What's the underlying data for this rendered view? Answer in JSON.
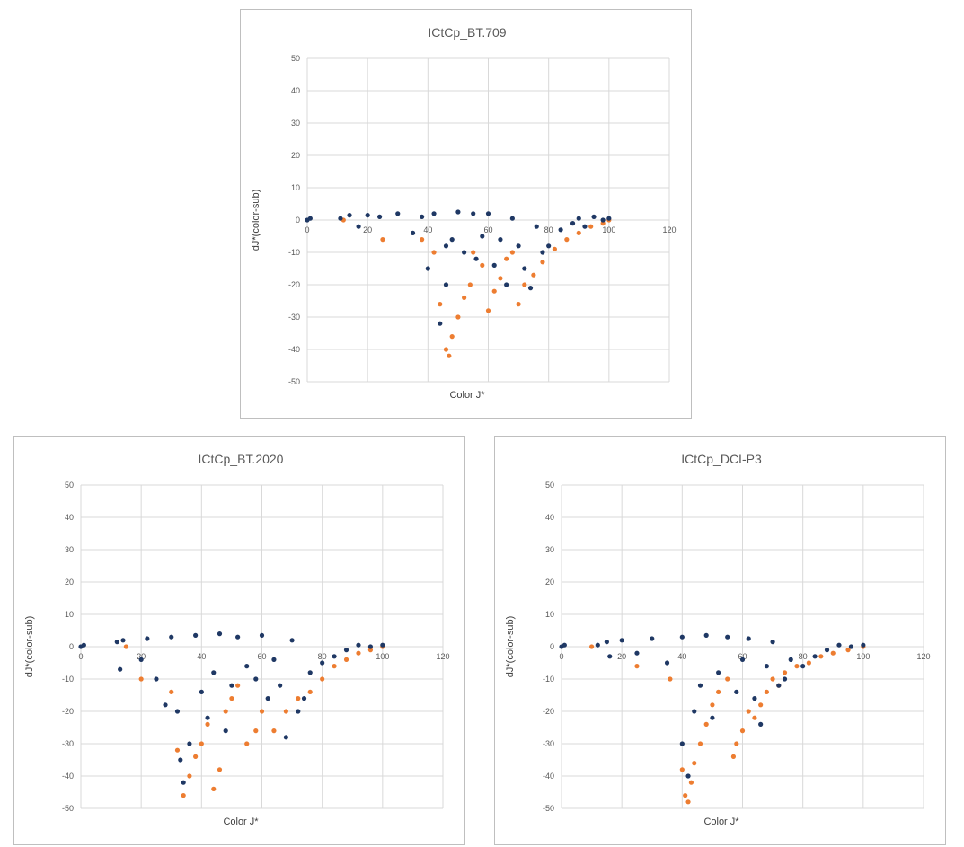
{
  "colors": {
    "series_a": "#1f3864",
    "series_b": "#ed7d31",
    "grid": "#d9d9d9"
  },
  "chart_data": [
    {
      "type": "scatter",
      "title": "ICtCp_BT.709",
      "xlabel": "Color J*",
      "ylabel": "dJ*(color-sub)",
      "xlim": [
        0,
        120
      ],
      "ylim": [
        -50,
        50
      ],
      "xticks": [
        "0",
        "20",
        "40",
        "60",
        "80",
        "100",
        "120"
      ],
      "yticks": [
        "50",
        "40",
        "30",
        "20",
        "10",
        "0",
        "-10",
        "-20",
        "-30",
        "-40",
        "-50"
      ],
      "series": [
        {
          "name": "dark",
          "points": [
            [
              0,
              0
            ],
            [
              1,
              0.5
            ],
            [
              11,
              0.5
            ],
            [
              14,
              1.5
            ],
            [
              17,
              -2
            ],
            [
              20,
              1.5
            ],
            [
              24,
              1
            ],
            [
              30,
              2
            ],
            [
              35,
              -4
            ],
            [
              38,
              1
            ],
            [
              40,
              -15
            ],
            [
              42,
              2
            ],
            [
              44,
              -32
            ],
            [
              46,
              -20
            ],
            [
              46,
              -8
            ],
            [
              48,
              -6
            ],
            [
              50,
              2.5
            ],
            [
              52,
              -10
            ],
            [
              55,
              2
            ],
            [
              56,
              -12
            ],
            [
              58,
              -5
            ],
            [
              60,
              2
            ],
            [
              62,
              -14
            ],
            [
              64,
              -6
            ],
            [
              66,
              -20
            ],
            [
              68,
              0.5
            ],
            [
              70,
              -8
            ],
            [
              72,
              -15
            ],
            [
              74,
              -21
            ],
            [
              76,
              -2
            ],
            [
              78,
              -10
            ],
            [
              80,
              -8
            ],
            [
              84,
              -3
            ],
            [
              88,
              -1
            ],
            [
              90,
              0.5
            ],
            [
              92,
              -2
            ],
            [
              95,
              1
            ],
            [
              98,
              0
            ],
            [
              100,
              0.5
            ]
          ]
        },
        {
          "name": "orange",
          "points": [
            [
              12,
              0
            ],
            [
              25,
              -6
            ],
            [
              38,
              -6
            ],
            [
              42,
              -10
            ],
            [
              44,
              -26
            ],
            [
              46,
              -40
            ],
            [
              47,
              -42
            ],
            [
              48,
              -36
            ],
            [
              50,
              -30
            ],
            [
              52,
              -24
            ],
            [
              54,
              -20
            ],
            [
              55,
              -10
            ],
            [
              58,
              -14
            ],
            [
              60,
              -28
            ],
            [
              62,
              -22
            ],
            [
              64,
              -18
            ],
            [
              66,
              -12
            ],
            [
              68,
              -10
            ],
            [
              70,
              -26
            ],
            [
              72,
              -20
            ],
            [
              75,
              -17
            ],
            [
              78,
              -13
            ],
            [
              82,
              -9
            ],
            [
              86,
              -6
            ],
            [
              90,
              -4
            ],
            [
              94,
              -2
            ],
            [
              98,
              -1
            ],
            [
              100,
              0
            ]
          ]
        }
      ]
    },
    {
      "type": "scatter",
      "title": "ICtCp_BT.2020",
      "xlabel": "Color J*",
      "ylabel": "dJ*(color-sub)",
      "xlim": [
        0,
        120
      ],
      "ylim": [
        -50,
        50
      ],
      "xticks": [
        "0",
        "20",
        "40",
        "60",
        "80",
        "100",
        "120"
      ],
      "yticks": [
        "50",
        "40",
        "30",
        "20",
        "10",
        "0",
        "-10",
        "-20",
        "-30",
        "-40",
        "-50"
      ],
      "series": [
        {
          "name": "dark",
          "points": [
            [
              0,
              0
            ],
            [
              1,
              0.5
            ],
            [
              12,
              1.5
            ],
            [
              14,
              2
            ],
            [
              13,
              -7
            ],
            [
              20,
              -4
            ],
            [
              22,
              2.5
            ],
            [
              25,
              -10
            ],
            [
              28,
              -18
            ],
            [
              30,
              3
            ],
            [
              32,
              -20
            ],
            [
              33,
              -35
            ],
            [
              34,
              -42
            ],
            [
              36,
              -30
            ],
            [
              38,
              3.5
            ],
            [
              40,
              -14
            ],
            [
              42,
              -22
            ],
            [
              44,
              -8
            ],
            [
              46,
              4
            ],
            [
              48,
              -26
            ],
            [
              50,
              -12
            ],
            [
              52,
              3
            ],
            [
              55,
              -6
            ],
            [
              58,
              -10
            ],
            [
              60,
              3.5
            ],
            [
              62,
              -16
            ],
            [
              64,
              -4
            ],
            [
              66,
              -12
            ],
            [
              68,
              -28
            ],
            [
              70,
              2
            ],
            [
              72,
              -20
            ],
            [
              74,
              -16
            ],
            [
              76,
              -8
            ],
            [
              80,
              -5
            ],
            [
              84,
              -3
            ],
            [
              88,
              -1
            ],
            [
              92,
              0.5
            ],
            [
              96,
              0
            ],
            [
              100,
              0.5
            ]
          ]
        },
        {
          "name": "orange",
          "points": [
            [
              15,
              0
            ],
            [
              20,
              -10
            ],
            [
              30,
              -14
            ],
            [
              32,
              -32
            ],
            [
              34,
              -46
            ],
            [
              36,
              -40
            ],
            [
              38,
              -34
            ],
            [
              40,
              -30
            ],
            [
              42,
              -24
            ],
            [
              44,
              -44
            ],
            [
              46,
              -38
            ],
            [
              48,
              -20
            ],
            [
              50,
              -16
            ],
            [
              52,
              -12
            ],
            [
              55,
              -30
            ],
            [
              58,
              -26
            ],
            [
              60,
              -20
            ],
            [
              64,
              -26
            ],
            [
              68,
              -20
            ],
            [
              72,
              -16
            ],
            [
              76,
              -14
            ],
            [
              80,
              -10
            ],
            [
              84,
              -6
            ],
            [
              88,
              -4
            ],
            [
              92,
              -2
            ],
            [
              96,
              -1
            ],
            [
              100,
              0
            ]
          ]
        }
      ]
    },
    {
      "type": "scatter",
      "title": "ICtCp_DCI-P3",
      "xlabel": "Color J*",
      "ylabel": "dJ*(color-sub)",
      "xlim": [
        0,
        120
      ],
      "ylim": [
        -50,
        50
      ],
      "xticks": [
        "0",
        "20",
        "40",
        "60",
        "80",
        "100",
        "120"
      ],
      "yticks": [
        "50",
        "40",
        "30",
        "20",
        "10",
        "0",
        "-10",
        "-20",
        "-30",
        "-40",
        "-50"
      ],
      "series": [
        {
          "name": "dark",
          "points": [
            [
              0,
              0
            ],
            [
              1,
              0.5
            ],
            [
              12,
              0.5
            ],
            [
              15,
              1.5
            ],
            [
              16,
              -3
            ],
            [
              20,
              2
            ],
            [
              25,
              -2
            ],
            [
              30,
              2.5
            ],
            [
              35,
              -5
            ],
            [
              40,
              3
            ],
            [
              40,
              -30
            ],
            [
              42,
              -40
            ],
            [
              44,
              -20
            ],
            [
              46,
              -12
            ],
            [
              48,
              3.5
            ],
            [
              50,
              -22
            ],
            [
              52,
              -8
            ],
            [
              55,
              3
            ],
            [
              58,
              -14
            ],
            [
              60,
              -4
            ],
            [
              62,
              2.5
            ],
            [
              64,
              -16
            ],
            [
              66,
              -24
            ],
            [
              68,
              -6
            ],
            [
              70,
              1.5
            ],
            [
              72,
              -12
            ],
            [
              74,
              -10
            ],
            [
              76,
              -4
            ],
            [
              80,
              -6
            ],
            [
              84,
              -3
            ],
            [
              88,
              -1
            ],
            [
              92,
              0.5
            ],
            [
              96,
              0
            ],
            [
              100,
              0.5
            ]
          ]
        },
        {
          "name": "orange",
          "points": [
            [
              10,
              0
            ],
            [
              25,
              -6
            ],
            [
              36,
              -10
            ],
            [
              40,
              -38
            ],
            [
              41,
              -46
            ],
            [
              42,
              -48
            ],
            [
              43,
              -42
            ],
            [
              44,
              -36
            ],
            [
              46,
              -30
            ],
            [
              48,
              -24
            ],
            [
              50,
              -18
            ],
            [
              52,
              -14
            ],
            [
              55,
              -10
            ],
            [
              57,
              -34
            ],
            [
              58,
              -30
            ],
            [
              60,
              -26
            ],
            [
              62,
              -20
            ],
            [
              64,
              -22
            ],
            [
              66,
              -18
            ],
            [
              68,
              -14
            ],
            [
              70,
              -10
            ],
            [
              72,
              -12
            ],
            [
              74,
              -8
            ],
            [
              78,
              -6
            ],
            [
              82,
              -5
            ],
            [
              86,
              -3
            ],
            [
              90,
              -2
            ],
            [
              95,
              -1
            ],
            [
              100,
              0
            ]
          ]
        }
      ]
    }
  ]
}
